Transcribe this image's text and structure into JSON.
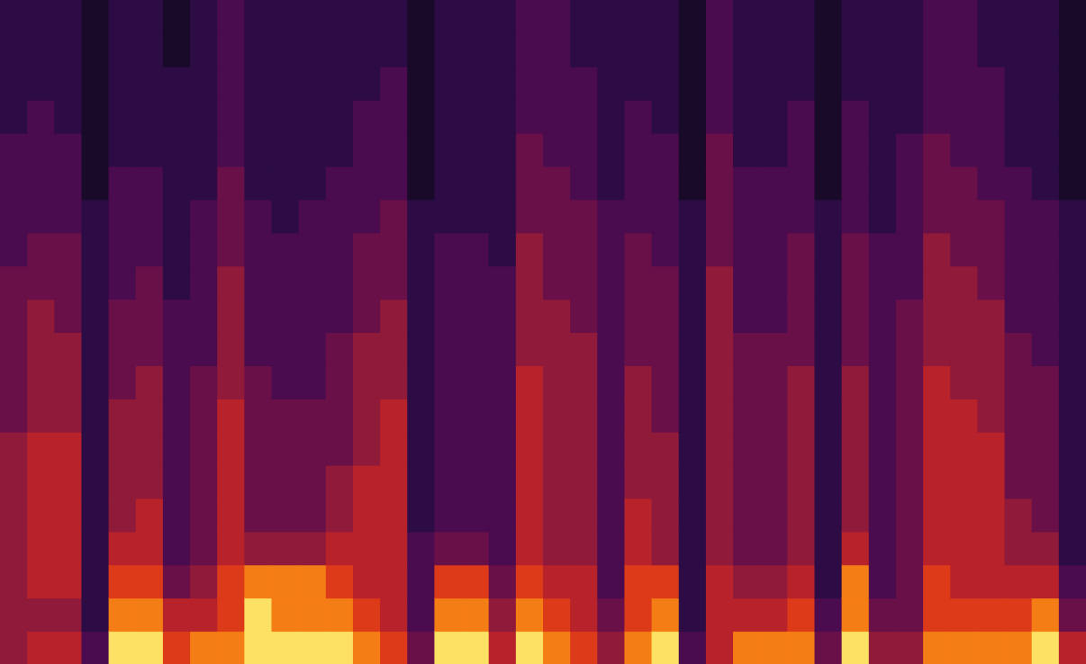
{
  "chart_data": {
    "type": "heatmap",
    "tick_labels": false,
    "zlim": [
      0,
      9
    ],
    "cells": [
      [
        5,
        5,
        5,
        5,
        5,
        5,
        5,
        4,
        4,
        4,
        4,
        4,
        3,
        3,
        3,
        3,
        2,
        2,
        2,
        2
      ],
      [
        6,
        5,
        6,
        6,
        6,
        6,
        6,
        5,
        5,
        5,
        5,
        4,
        4,
        3,
        3,
        3,
        3,
        2,
        2,
        2
      ],
      [
        6,
        5,
        6,
        6,
        6,
        6,
        6,
        5,
        5,
        5,
        4,
        4,
        4,
        3,
        3,
        3,
        2,
        2,
        2,
        2
      ],
      [
        3,
        2,
        2,
        2,
        2,
        2,
        2,
        2,
        2,
        2,
        2,
        2,
        2,
        2,
        1,
        1,
        1,
        1,
        1,
        1
      ],
      [
        9,
        8,
        7,
        6,
        5,
        5,
        5,
        5,
        4,
        4,
        4,
        3,
        3,
        3,
        3,
        2,
        2,
        2,
        2,
        2
      ],
      [
        9,
        8,
        7,
        6,
        6,
        5,
        5,
        5,
        5,
        4,
        4,
        4,
        3,
        3,
        3,
        2,
        2,
        2,
        2,
        2
      ],
      [
        7,
        6,
        4,
        3,
        3,
        3,
        3,
        3,
        3,
        3,
        3,
        2,
        2,
        2,
        2,
        2,
        2,
        2,
        1,
        1
      ],
      [
        8,
        6,
        5,
        4,
        4,
        4,
        4,
        4,
        4,
        3,
        3,
        3,
        3,
        3,
        2,
        2,
        2,
        2,
        2,
        2
      ],
      [
        8,
        7,
        7,
        6,
        6,
        6,
        6,
        6,
        5,
        5,
        5,
        5,
        4,
        4,
        4,
        3,
        3,
        3,
        3,
        3
      ],
      [
        9,
        9,
        8,
        5,
        4,
        4,
        4,
        4,
        4,
        3,
        3,
        3,
        3,
        3,
        2,
        2,
        2,
        2,
        2,
        2
      ],
      [
        9,
        8,
        8,
        5,
        4,
        4,
        4,
        4,
        3,
        3,
        3,
        3,
        3,
        2,
        2,
        2,
        2,
        2,
        2,
        2
      ],
      [
        9,
        8,
        8,
        5,
        4,
        4,
        4,
        4,
        3,
        3,
        3,
        3,
        3,
        3,
        2,
        2,
        2,
        2,
        2,
        2
      ],
      [
        9,
        8,
        7,
        6,
        5,
        5,
        4,
        4,
        4,
        4,
        3,
        3,
        3,
        3,
        3,
        2,
        2,
        2,
        2,
        2
      ],
      [
        8,
        7,
        6,
        6,
        6,
        6,
        5,
        5,
        5,
        5,
        4,
        4,
        4,
        3,
        3,
        3,
        3,
        2,
        2,
        2
      ],
      [
        7,
        6,
        6,
        6,
        6,
        6,
        6,
        6,
        5,
        5,
        5,
        4,
        4,
        4,
        3,
        3,
        3,
        3,
        2,
        2
      ],
      [
        4,
        3,
        3,
        3,
        2,
        2,
        2,
        2,
        2,
        2,
        2,
        2,
        2,
        2,
        1,
        1,
        1,
        1,
        1,
        1
      ],
      [
        9,
        8,
        7,
        4,
        3,
        3,
        3,
        3,
        3,
        3,
        3,
        3,
        3,
        2,
        2,
        2,
        2,
        2,
        2,
        2
      ],
      [
        9,
        8,
        7,
        4,
        3,
        3,
        3,
        3,
        3,
        3,
        3,
        3,
        3,
        2,
        2,
        2,
        2,
        2,
        2,
        2
      ],
      [
        6,
        5,
        4,
        3,
        3,
        3,
        3,
        3,
        3,
        3,
        3,
        3,
        2,
        2,
        2,
        2,
        2,
        2,
        2,
        2
      ],
      [
        9,
        8,
        7,
        6,
        6,
        6,
        6,
        6,
        6,
        5,
        5,
        5,
        5,
        4,
        4,
        4,
        3,
        3,
        3,
        3
      ],
      [
        8,
        7,
        6,
        5,
        5,
        5,
        5,
        5,
        5,
        5,
        5,
        4,
        4,
        4,
        4,
        3,
        3,
        3,
        3,
        3
      ],
      [
        7,
        6,
        6,
        5,
        5,
        5,
        5,
        5,
        5,
        5,
        4,
        4,
        4,
        4,
        3,
        3,
        3,
        3,
        2,
        2
      ],
      [
        5,
        4,
        3,
        3,
        3,
        3,
        3,
        3,
        3,
        3,
        3,
        3,
        3,
        3,
        2,
        2,
        2,
        2,
        2,
        2
      ],
      [
        8,
        7,
        7,
        6,
        6,
        5,
        5,
        5,
        5,
        4,
        4,
        4,
        4,
        3,
        3,
        3,
        3,
        2,
        2,
        2
      ],
      [
        9,
        8,
        7,
        5,
        5,
        5,
        5,
        4,
        4,
        4,
        4,
        4,
        3,
        3,
        3,
        3,
        2,
        2,
        2,
        2
      ],
      [
        3,
        2,
        2,
        2,
        2,
        2,
        2,
        2,
        2,
        2,
        2,
        2,
        2,
        2,
        1,
        1,
        1,
        1,
        1,
        1
      ],
      [
        6,
        6,
        6,
        5,
        5,
        5,
        5,
        5,
        5,
        5,
        5,
        5,
        4,
        4,
        4,
        4,
        3,
        3,
        3,
        3
      ],
      [
        8,
        6,
        5,
        4,
        4,
        4,
        4,
        4,
        4,
        4,
        3,
        3,
        3,
        3,
        3,
        2,
        2,
        2,
        2,
        2
      ],
      [
        8,
        6,
        5,
        4,
        4,
        4,
        4,
        4,
        4,
        4,
        3,
        3,
        3,
        3,
        3,
        2,
        2,
        2,
        2,
        2
      ],
      [
        8,
        7,
        6,
        5,
        5,
        5,
        5,
        5,
        5,
        4,
        4,
        4,
        4,
        3,
        3,
        3,
        3,
        2,
        2,
        2
      ],
      [
        4,
        3,
        2,
        2,
        2,
        2,
        2,
        2,
        2,
        2,
        2,
        2,
        2,
        2,
        1,
        1,
        1,
        1,
        1,
        1
      ],
      [
        9,
        8,
        8,
        6,
        5,
        5,
        5,
        5,
        5,
        4,
        4,
        4,
        4,
        3,
        3,
        3,
        3,
        2,
        2,
        2
      ],
      [
        5,
        4,
        3,
        3,
        3,
        3,
        3,
        3,
        3,
        3,
        3,
        3,
        3,
        2,
        2,
        2,
        2,
        2,
        2,
        2
      ],
      [
        5,
        4,
        4,
        4,
        4,
        4,
        4,
        4,
        4,
        4,
        4,
        3,
        3,
        3,
        3,
        3,
        2,
        2,
        2,
        2
      ],
      [
        8,
        7,
        7,
        6,
        6,
        6,
        6,
        6,
        6,
        5,
        5,
        5,
        5,
        4,
        4,
        4,
        3,
        3,
        3,
        3
      ],
      [
        8,
        7,
        6,
        6,
        6,
        6,
        6,
        6,
        5,
        5,
        5,
        5,
        4,
        4,
        4,
        3,
        3,
        3,
        3,
        3
      ],
      [
        8,
        7,
        6,
        6,
        6,
        6,
        6,
        5,
        5,
        5,
        5,
        4,
        4,
        4,
        3,
        3,
        3,
        3,
        2,
        2
      ],
      [
        8,
        7,
        6,
        5,
        5,
        4,
        4,
        4,
        4,
        4,
        3,
        3,
        3,
        3,
        3,
        2,
        2,
        2,
        2,
        2
      ],
      [
        9,
        8,
        6,
        5,
        4,
        4,
        4,
        4,
        4,
        3,
        3,
        3,
        3,
        3,
        2,
        2,
        2,
        2,
        2,
        2
      ],
      [
        6,
        4,
        3,
        2,
        2,
        2,
        2,
        2,
        2,
        2,
        2,
        2,
        2,
        2,
        1,
        1,
        1,
        1,
        1,
        1
      ]
    ]
  }
}
